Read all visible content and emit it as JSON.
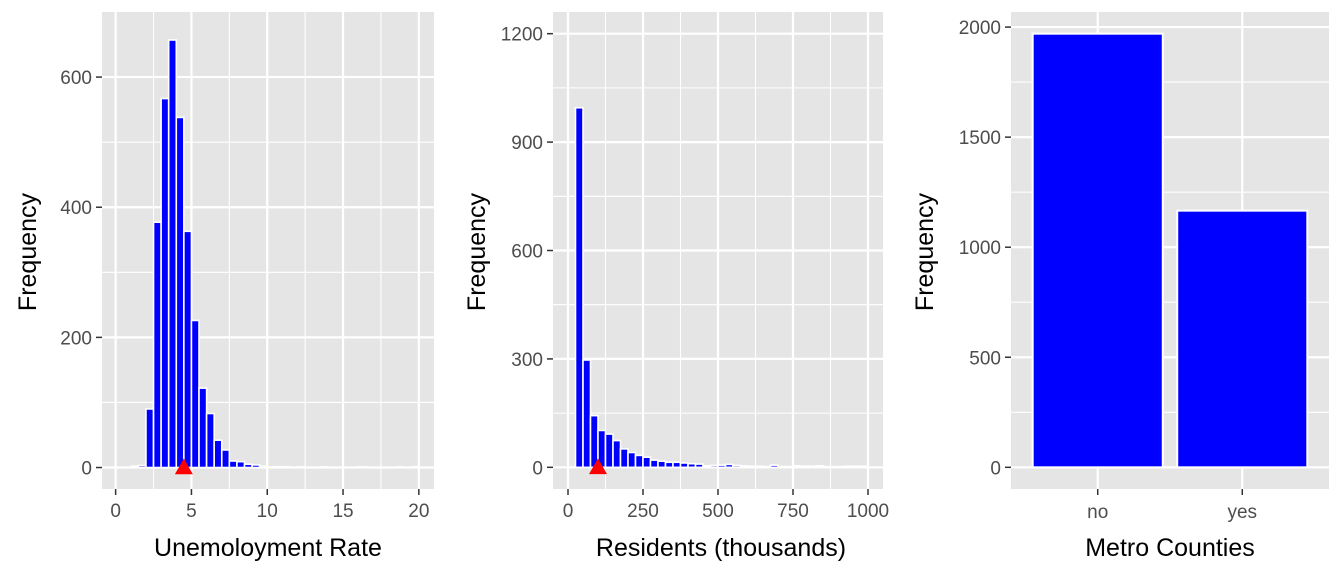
{
  "colors": {
    "panel_background": "#e5e5e5",
    "grid": "#ffffff",
    "bar_fill": "#0000ff",
    "bar_outline": "#ffffff",
    "mean_marker": "#ff0000",
    "tick_text": "#4d4d4d",
    "tick_mark": "#333333",
    "axis_title_text": "#000000"
  },
  "chart_data": [
    {
      "type": "bar",
      "subtype": "histogram",
      "title": "",
      "xlabel": "Unemoloyment Rate",
      "ylabel": "Frequency",
      "xlim": [
        -0.9,
        21.0
      ],
      "ylim": [
        -33,
        700
      ],
      "x_ticks": [
        0,
        5,
        10,
        15,
        20
      ],
      "x_tick_labels": [
        "0",
        "5",
        "10",
        "15",
        "20"
      ],
      "y_ticks": [
        0,
        200,
        400,
        600
      ],
      "y_tick_labels": [
        "0",
        "200",
        "400",
        "600"
      ],
      "grid": true,
      "legend": "none",
      "bins": [
        {
          "x0": 1.0,
          "x1": 1.5,
          "count": 2
        },
        {
          "x0": 1.5,
          "x1": 2.0,
          "count": 3
        },
        {
          "x0": 2.0,
          "x1": 2.5,
          "count": 90
        },
        {
          "x0": 2.5,
          "x1": 3.0,
          "count": 377
        },
        {
          "x0": 3.0,
          "x1": 3.5,
          "count": 567
        },
        {
          "x0": 3.5,
          "x1": 4.0,
          "count": 657
        },
        {
          "x0": 4.0,
          "x1": 4.5,
          "count": 538
        },
        {
          "x0": 4.5,
          "x1": 5.0,
          "count": 363
        },
        {
          "x0": 5.0,
          "x1": 5.5,
          "count": 226
        },
        {
          "x0": 5.5,
          "x1": 6.0,
          "count": 122
        },
        {
          "x0": 6.0,
          "x1": 6.5,
          "count": 83
        },
        {
          "x0": 6.5,
          "x1": 7.0,
          "count": 42
        },
        {
          "x0": 7.0,
          "x1": 7.5,
          "count": 27
        },
        {
          "x0": 7.5,
          "x1": 8.0,
          "count": 10
        },
        {
          "x0": 8.0,
          "x1": 8.5,
          "count": 9
        },
        {
          "x0": 8.5,
          "x1": 9.0,
          "count": 5
        },
        {
          "x0": 9.0,
          "x1": 9.5,
          "count": 4
        },
        {
          "x0": 9.5,
          "x1": 10.0,
          "count": 2
        },
        {
          "x0": 10.0,
          "x1": 10.5,
          "count": 1
        },
        {
          "x0": 10.5,
          "x1": 11.0,
          "count": 1
        },
        {
          "x0": 11.0,
          "x1": 11.5,
          "count": 1
        },
        {
          "x0": 11.5,
          "x1": 12.0,
          "count": 0
        },
        {
          "x0": 12.0,
          "x1": 12.5,
          "count": 1
        },
        {
          "x0": 12.5,
          "x1": 13.0,
          "count": 0
        },
        {
          "x0": 13.0,
          "x1": 13.5,
          "count": 0
        },
        {
          "x0": 13.5,
          "x1": 14.0,
          "count": 1
        },
        {
          "x0": 14.0,
          "x1": 14.5,
          "count": 0
        },
        {
          "x0": 14.5,
          "x1": 15.0,
          "count": 0
        },
        {
          "x0": 15.0,
          "x1": 15.5,
          "count": 0
        },
        {
          "x0": 15.5,
          "x1": 16.0,
          "count": 0
        },
        {
          "x0": 16.0,
          "x1": 16.5,
          "count": 1
        },
        {
          "x0": 16.5,
          "x1": 17.0,
          "count": 0
        },
        {
          "x0": 17.0,
          "x1": 17.5,
          "count": 0
        },
        {
          "x0": 17.5,
          "x1": 18.0,
          "count": 0
        },
        {
          "x0": 18.0,
          "x1": 18.5,
          "count": 0
        },
        {
          "x0": 18.5,
          "x1": 19.0,
          "count": 1
        },
        {
          "x0": 19.0,
          "x1": 19.5,
          "count": 0
        },
        {
          "x0": 19.5,
          "x1": 20.0,
          "count": 1
        }
      ],
      "mean_marker": {
        "x": 4.5,
        "y": 0,
        "shape": "triangle"
      }
    },
    {
      "type": "bar",
      "subtype": "histogram",
      "title": "",
      "xlabel": "Residents (thousands)",
      "ylabel": "Frequency",
      "xlim": [
        -50,
        1050
      ],
      "ylim": [
        -60,
        1260
      ],
      "x_ticks": [
        0,
        250,
        500,
        750,
        1000
      ],
      "x_tick_labels": [
        "0",
        "250",
        "500",
        "750",
        "1000"
      ],
      "y_ticks": [
        0,
        300,
        600,
        900,
        1200
      ],
      "y_tick_labels": [
        "0",
        "300",
        "600",
        "900",
        "1200"
      ],
      "grid": true,
      "legend": "none",
      "bins": [
        {
          "x0": 25,
          "x1": 50,
          "count": 995
        },
        {
          "x0": 50,
          "x1": 75,
          "count": 297
        },
        {
          "x0": 75,
          "x1": 100,
          "count": 143
        },
        {
          "x0": 100,
          "x1": 125,
          "count": 102
        },
        {
          "x0": 125,
          "x1": 150,
          "count": 92
        },
        {
          "x0": 150,
          "x1": 175,
          "count": 74
        },
        {
          "x0": 175,
          "x1": 200,
          "count": 51
        },
        {
          "x0": 200,
          "x1": 225,
          "count": 41
        },
        {
          "x0": 225,
          "x1": 250,
          "count": 33
        },
        {
          "x0": 250,
          "x1": 275,
          "count": 28
        },
        {
          "x0": 275,
          "x1": 300,
          "count": 20
        },
        {
          "x0": 300,
          "x1": 325,
          "count": 17
        },
        {
          "x0": 325,
          "x1": 350,
          "count": 14
        },
        {
          "x0": 350,
          "x1": 375,
          "count": 14
        },
        {
          "x0": 375,
          "x1": 400,
          "count": 12
        },
        {
          "x0": 400,
          "x1": 425,
          "count": 10
        },
        {
          "x0": 425,
          "x1": 450,
          "count": 9
        },
        {
          "x0": 450,
          "x1": 475,
          "count": 4
        },
        {
          "x0": 475,
          "x1": 500,
          "count": 5
        },
        {
          "x0": 500,
          "x1": 525,
          "count": 6
        },
        {
          "x0": 525,
          "x1": 550,
          "count": 8
        },
        {
          "x0": 550,
          "x1": 575,
          "count": 5
        },
        {
          "x0": 575,
          "x1": 600,
          "count": 4
        },
        {
          "x0": 600,
          "x1": 625,
          "count": 3
        },
        {
          "x0": 625,
          "x1": 650,
          "count": 3
        },
        {
          "x0": 650,
          "x1": 675,
          "count": 2
        },
        {
          "x0": 675,
          "x1": 700,
          "count": 6
        },
        {
          "x0": 700,
          "x1": 725,
          "count": 2
        },
        {
          "x0": 725,
          "x1": 750,
          "count": 2
        },
        {
          "x0": 750,
          "x1": 775,
          "count": 4
        },
        {
          "x0": 775,
          "x1": 800,
          "count": 3
        },
        {
          "x0": 800,
          "x1": 825,
          "count": 3
        },
        {
          "x0": 825,
          "x1": 850,
          "count": 4
        },
        {
          "x0": 850,
          "x1": 875,
          "count": 2
        },
        {
          "x0": 875,
          "x1": 900,
          "count": 2
        },
        {
          "x0": 900,
          "x1": 925,
          "count": 2
        },
        {
          "x0": 925,
          "x1": 950,
          "count": 3
        },
        {
          "x0": 950,
          "x1": 975,
          "count": 3
        },
        {
          "x0": 975,
          "x1": 1000,
          "count": 3
        }
      ],
      "mean_marker": {
        "x": 100,
        "y": 0,
        "shape": "triangle"
      }
    },
    {
      "type": "bar",
      "title": "",
      "xlabel": "Metro Counties",
      "ylabel": "Frequency",
      "categories": [
        "no",
        "yes"
      ],
      "values": [
        1970,
        1166
      ],
      "ylim": [
        -98.5,
        2068.5
      ],
      "y_ticks": [
        0,
        500,
        1000,
        1500,
        2000
      ],
      "y_tick_labels": [
        "0",
        "500",
        "1000",
        "1500",
        "2000"
      ],
      "grid": true,
      "legend": "none"
    }
  ]
}
